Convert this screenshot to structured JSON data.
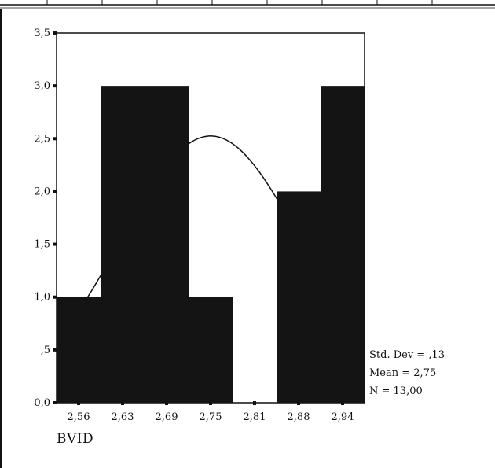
{
  "chart_data": {
    "type": "bar",
    "title": "",
    "xlabel": "BVID",
    "ylabel": "",
    "categories": [
      "2,56",
      "2,63",
      "2,69",
      "2,75",
      "2,81",
      "2,88",
      "2,94"
    ],
    "values": [
      1,
      3,
      3,
      1,
      0,
      2,
      3
    ],
    "y_ticks": [
      "0,0",
      ",5",
      "1,0",
      "1,5",
      "2,0",
      "2,5",
      "3,0",
      "3,5"
    ],
    "ylim": [
      0,
      3.5
    ],
    "grid": false,
    "normal_curve": {
      "shown": true,
      "mean": 2.75,
      "std_dev": 0.13,
      "n": 13
    },
    "stats": {
      "std_dev": "Std. Dev = ,13",
      "mean": "Mean = 2,75",
      "n": "N = 13,00"
    },
    "colors": {
      "bars": "#141414",
      "axes": "#111111",
      "curve": "#111111"
    }
  }
}
